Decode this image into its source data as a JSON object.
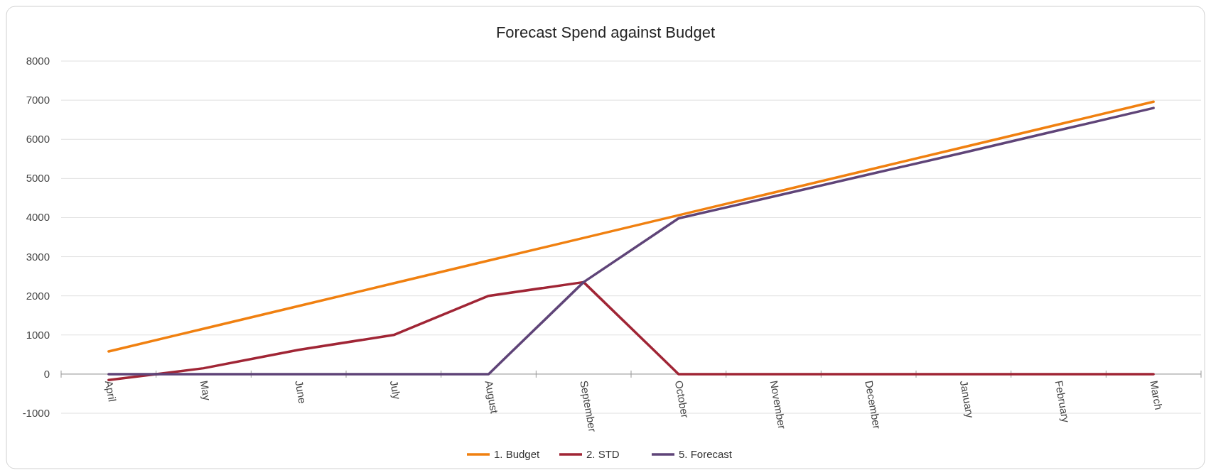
{
  "chart_data": {
    "type": "line",
    "title": "Forecast Spend against Budget",
    "categories": [
      "April",
      "May",
      "June",
      "July",
      "August",
      "September",
      "October",
      "November",
      "December",
      "January",
      "February",
      "March"
    ],
    "series": [
      {
        "name": "1. Budget",
        "color": "#f08010",
        "values": [
          580,
          1160,
          1740,
          2320,
          2900,
          3480,
          4060,
          4640,
          5220,
          5800,
          6380,
          6960
        ]
      },
      {
        "name": "2. STD",
        "color": "#a02535",
        "values": [
          -150,
          150,
          620,
          1000,
          2000,
          2350,
          0,
          0,
          0,
          0,
          0,
          0
        ]
      },
      {
        "name": "5. Forecast",
        "color": "#5f4478",
        "values": [
          0,
          0,
          0,
          0,
          0,
          2350,
          3980,
          4540,
          5100,
          5660,
          6230,
          6800
        ]
      }
    ],
    "ylim": [
      -1000,
      8000
    ],
    "yticks": [
      -1000,
      0,
      1000,
      2000,
      3000,
      4000,
      5000,
      6000,
      7000,
      8000
    ],
    "grid": "y",
    "legend": "bottom",
    "marker": "none",
    "line_style": "solid"
  }
}
